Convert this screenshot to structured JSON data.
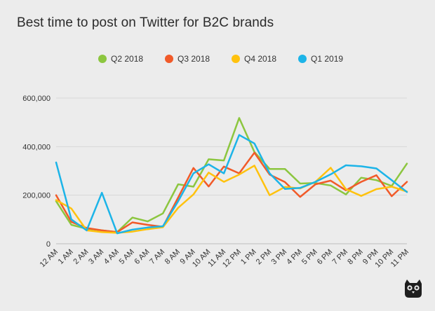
{
  "chart_data": {
    "type": "line",
    "title": "Best time to post on Twitter for B2C brands",
    "xlabel": "",
    "ylabel": "",
    "ylim": [
      0,
      600000
    ],
    "yticks": [
      0,
      200000,
      400000,
      600000
    ],
    "ytick_labels": [
      "0",
      "200,000",
      "400,000",
      "600,000"
    ],
    "grid": true,
    "legend_position": "top",
    "categories": [
      "12 AM",
      "1 AM",
      "2 AM",
      "3 AM",
      "4 AM",
      "5 AM",
      "6 AM",
      "7 AM",
      "8 AM",
      "9 AM",
      "10 AM",
      "11 AM",
      "12 PM",
      "1 PM",
      "2 PM",
      "3 PM",
      "4 PM",
      "5 PM",
      "6 PM",
      "7 PM",
      "8 PM",
      "9 PM",
      "10 PM",
      "11 PM"
    ],
    "series": [
      {
        "name": "Q2 2018",
        "color": "#8cc63f",
        "values": [
          175000,
          78000,
          62000,
          55000,
          48000,
          108000,
          92000,
          125000,
          245000,
          235000,
          348000,
          343000,
          518000,
          378000,
          308000,
          308000,
          248000,
          250000,
          240000,
          203000,
          272000,
          262000,
          238000,
          330000
        ]
      },
      {
        "name": "Q3 2018",
        "color": "#f15a29",
        "values": [
          200000,
          90000,
          65000,
          55000,
          48000,
          88000,
          78000,
          70000,
          190000,
          312000,
          236000,
          318000,
          290000,
          375000,
          285000,
          254000,
          193000,
          245000,
          260000,
          220000,
          255000,
          282000,
          196000,
          255000
        ]
      },
      {
        "name": "Q4 2018",
        "color": "#ffc20e",
        "values": [
          180000,
          145000,
          55000,
          48000,
          45000,
          50000,
          60000,
          68000,
          148000,
          203000,
          293000,
          255000,
          285000,
          322000,
          200000,
          234000,
          228000,
          255000,
          313000,
          225000,
          197000,
          225000,
          235000,
          215000
        ]
      },
      {
        "name": "Q1 2019",
        "color": "#1cb4e8",
        "values": [
          335000,
          100000,
          55000,
          210000,
          43000,
          58000,
          67000,
          72000,
          175000,
          290000,
          327000,
          290000,
          448000,
          413000,
          290000,
          226000,
          230000,
          255000,
          286000,
          323000,
          319000,
          310000,
          262000,
          213000
        ]
      }
    ]
  },
  "logo": {
    "icon": "owl-logo-icon"
  }
}
